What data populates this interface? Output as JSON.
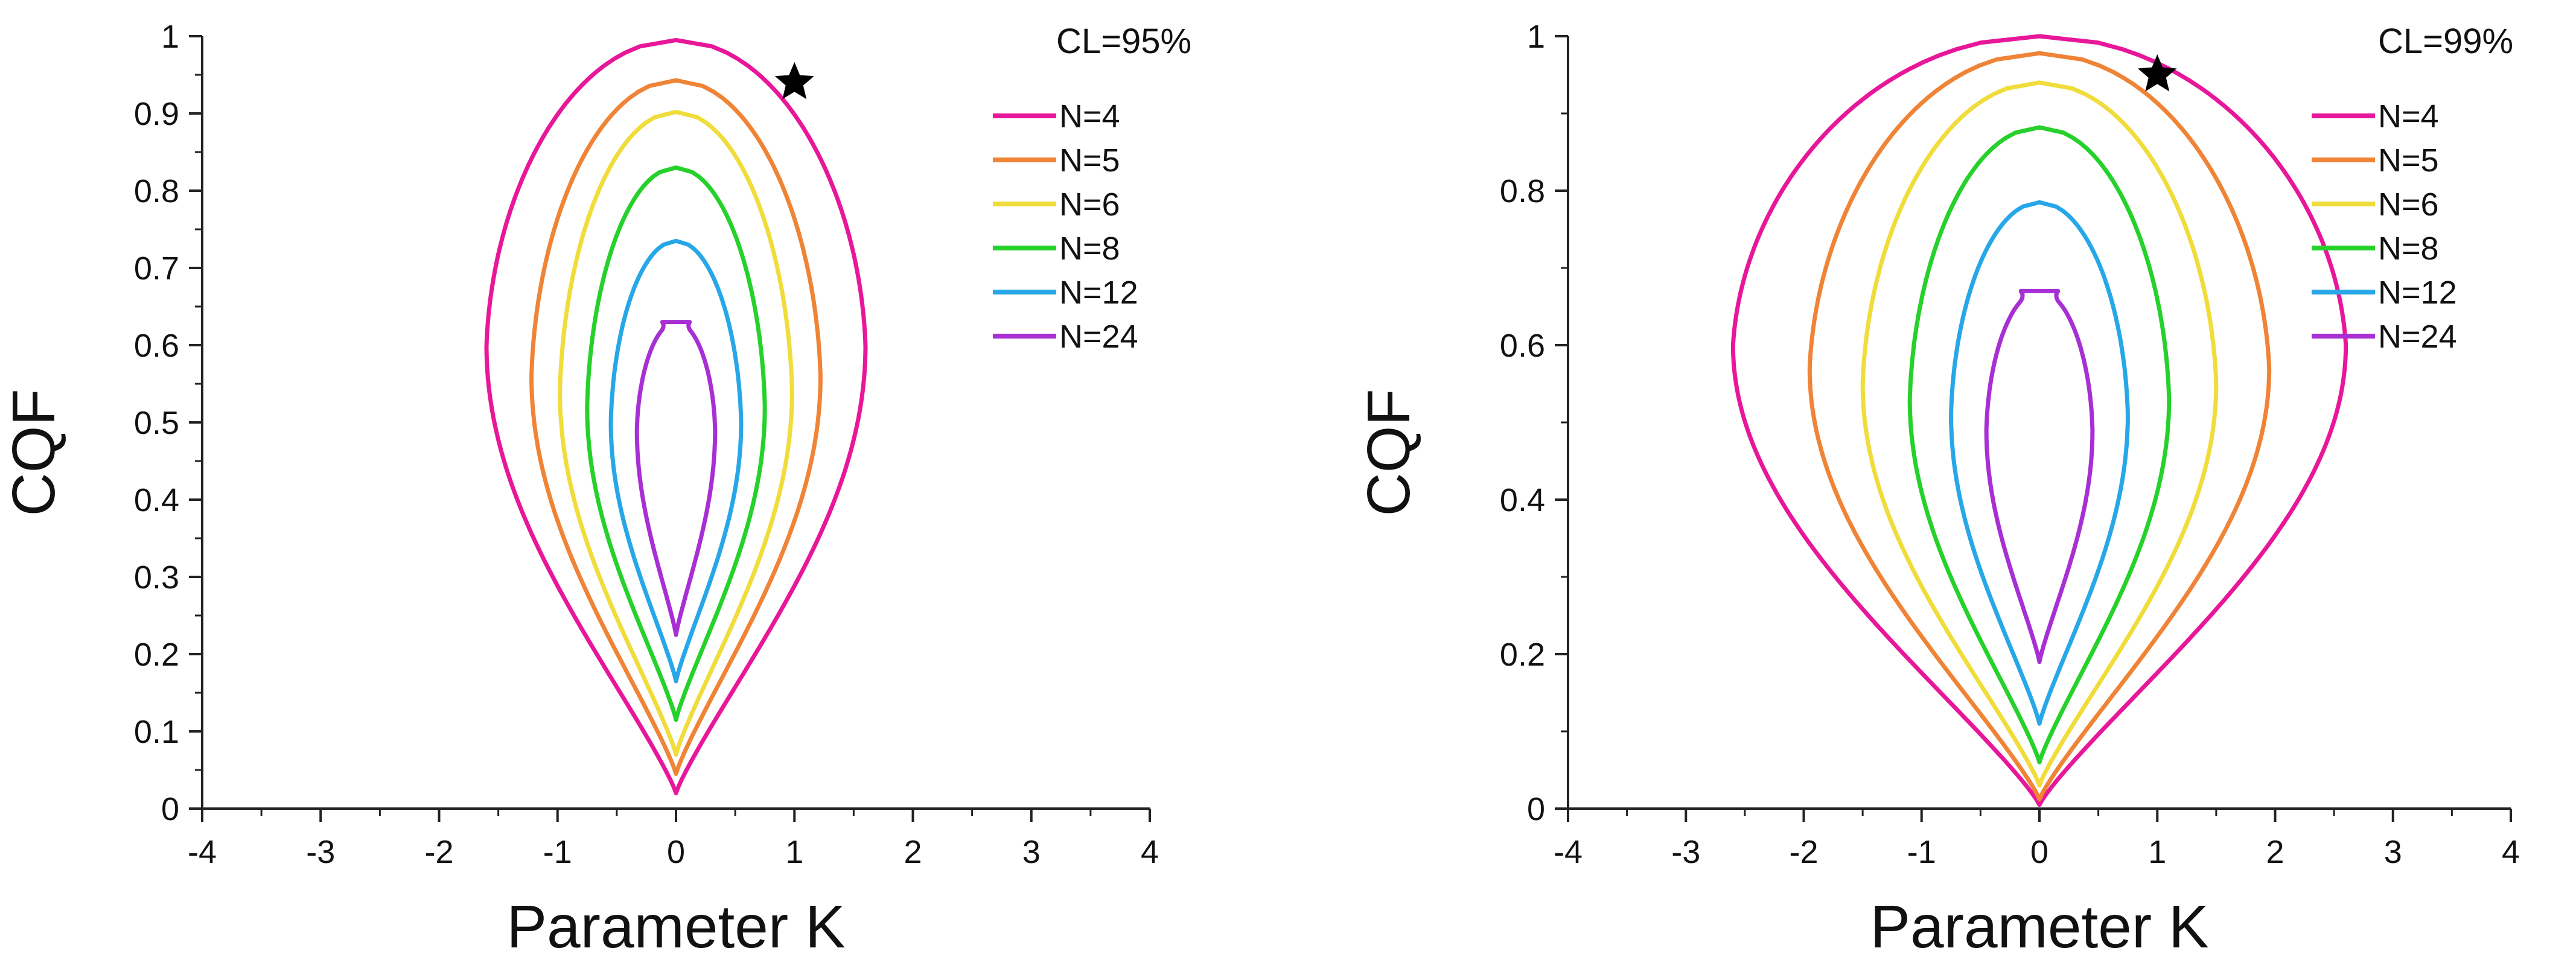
{
  "chart_data": [
    {
      "type": "line",
      "title": "",
      "annotation": "CL=95%",
      "xlabel": "Parameter K",
      "ylabel": "CQF",
      "xlim": [
        -4,
        4
      ],
      "ylim": [
        0,
        1
      ],
      "xticks": [
        -4,
        -3,
        -2,
        -1,
        0,
        1,
        2,
        3,
        4
      ],
      "xtick_labels": [
        "-4",
        "-3",
        "-2",
        "-1",
        "0",
        "1",
        "2",
        "3",
        "4"
      ],
      "yticks": [
        0,
        0.1,
        0.2,
        0.3,
        0.4,
        0.5,
        0.6,
        0.7,
        0.8,
        0.9,
        1
      ],
      "ytick_labels": [
        "0",
        "0.1",
        "0.2",
        "0.3",
        "0.4",
        "0.5",
        "0.6",
        "0.7",
        "0.8",
        "0.9",
        "1"
      ],
      "grid": false,
      "legend_position": "top-right",
      "marker": {
        "symbol": "star",
        "x": 1.0,
        "y": 0.94,
        "color": "#000000"
      },
      "series": [
        {
          "name": "N=4",
          "color": "#e8179a",
          "y_min": 0.02,
          "y_max": 0.995,
          "k_max": 1.6,
          "y_at_max": 0.6
        },
        {
          "name": "N=5",
          "color": "#ef8437",
          "y_min": 0.045,
          "y_max": 0.943,
          "k_max": 1.22,
          "y_at_max": 0.56
        },
        {
          "name": "N=6",
          "color": "#f0dc3a",
          "y_min": 0.07,
          "y_max": 0.902,
          "k_max": 0.98,
          "y_at_max": 0.54
        },
        {
          "name": "N=8",
          "color": "#25d12a",
          "y_min": 0.115,
          "y_max": 0.83,
          "k_max": 0.75,
          "y_at_max": 0.52
        },
        {
          "name": "N=12",
          "color": "#27a7e7",
          "y_min": 0.165,
          "y_max": 0.735,
          "k_max": 0.55,
          "y_at_max": 0.5
        },
        {
          "name": "N=24",
          "color": "#a72fd3",
          "y_min": 0.225,
          "y_max": 0.63,
          "k_max": 0.33,
          "y_at_max": 0.49,
          "notched": true
        }
      ]
    },
    {
      "type": "line",
      "title": "",
      "annotation": "CL=99%",
      "xlabel": "Parameter K",
      "ylabel": "CQF",
      "xlim": [
        -4,
        4
      ],
      "ylim": [
        0,
        1
      ],
      "xticks": [
        -4,
        -3,
        -2,
        -1,
        0,
        1,
        2,
        3,
        4
      ],
      "xtick_labels": [
        "-4",
        "-3",
        "-2",
        "-1",
        "0",
        "1",
        "2",
        "3",
        "4"
      ],
      "yticks": [
        0,
        0.2,
        0.4,
        0.6,
        0.8,
        1
      ],
      "ytick_labels": [
        "0",
        "0.2",
        "0.4",
        "0.6",
        "0.8",
        "1"
      ],
      "grid": false,
      "legend_position": "top-right",
      "marker": {
        "symbol": "star",
        "x": 1.0,
        "y": 0.95,
        "color": "#000000"
      },
      "series": [
        {
          "name": "N=4",
          "color": "#e8179a",
          "y_min": 0.005,
          "y_max": 1.0,
          "k_max": 2.6,
          "y_at_max": 0.6
        },
        {
          "name": "N=5",
          "color": "#ef8437",
          "y_min": 0.012,
          "y_max": 0.978,
          "k_max": 1.95,
          "y_at_max": 0.57
        },
        {
          "name": "N=6",
          "color": "#f0dc3a",
          "y_min": 0.03,
          "y_max": 0.94,
          "k_max": 1.5,
          "y_at_max": 0.55
        },
        {
          "name": "N=8",
          "color": "#25d12a",
          "y_min": 0.06,
          "y_max": 0.882,
          "k_max": 1.1,
          "y_at_max": 0.53
        },
        {
          "name": "N=12",
          "color": "#27a7e7",
          "y_min": 0.11,
          "y_max": 0.785,
          "k_max": 0.75,
          "y_at_max": 0.51
        },
        {
          "name": "N=24",
          "color": "#a72fd3",
          "y_min": 0.19,
          "y_max": 0.67,
          "k_max": 0.45,
          "y_at_max": 0.49,
          "notched": true
        }
      ]
    }
  ]
}
